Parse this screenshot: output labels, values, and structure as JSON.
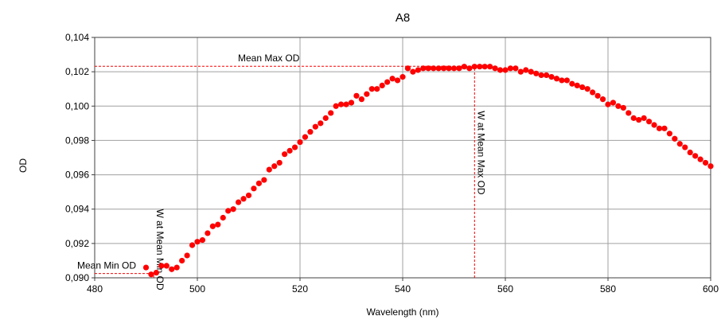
{
  "chart_data": {
    "type": "scatter",
    "title": "A8",
    "xlabel": "Wavelength (nm)",
    "ylabel": "OD",
    "xlim": [
      480,
      600
    ],
    "ylim": [
      0.09,
      0.104
    ],
    "x_ticks": [
      480,
      500,
      520,
      540,
      560,
      580,
      600
    ],
    "x_tick_labels": [
      "480",
      "500",
      "520",
      "540",
      "560",
      "580",
      "600"
    ],
    "y_ticks": [
      0.09,
      0.092,
      0.094,
      0.096,
      0.098,
      0.1,
      0.102,
      0.104
    ],
    "y_tick_labels": [
      "0,090",
      "0,092",
      "0,094",
      "0,096",
      "0,098",
      "0,100",
      "0,102",
      "0,104"
    ],
    "grid": true,
    "marker_color": "#ff0000",
    "annotation_color": "#ff0000",
    "series": [
      {
        "x": [
          490,
          491,
          492,
          493,
          494,
          495,
          496,
          497,
          498,
          499,
          500,
          501,
          502,
          503,
          504,
          505,
          506,
          507,
          508,
          509,
          510,
          511,
          512,
          513,
          514,
          515,
          516,
          517,
          518,
          519,
          520,
          521,
          522,
          523,
          524,
          525,
          526,
          527,
          528,
          529,
          530,
          531,
          532,
          533,
          534,
          535,
          536,
          537,
          538,
          539,
          540,
          541,
          542,
          543,
          544,
          545,
          546,
          547,
          548,
          549,
          550,
          551,
          552,
          553,
          554,
          555,
          556,
          557,
          558,
          559,
          560,
          561,
          562,
          563,
          564,
          565,
          566,
          567,
          568,
          569,
          570,
          571,
          572,
          573,
          574,
          575,
          576,
          577,
          578,
          579,
          580,
          581,
          582,
          583,
          584,
          585,
          586,
          587,
          588,
          589,
          590,
          591,
          592,
          593,
          594,
          595,
          596,
          597,
          598,
          599,
          600
        ],
        "y": [
          0.0906,
          0.0902,
          0.0903,
          0.0907,
          0.0907,
          0.0905,
          0.0906,
          0.091,
          0.0913,
          0.0919,
          0.0921,
          0.0922,
          0.0926,
          0.093,
          0.0931,
          0.0935,
          0.0939,
          0.094,
          0.0944,
          0.0946,
          0.0948,
          0.0952,
          0.0955,
          0.0957,
          0.0963,
          0.0965,
          0.0967,
          0.0972,
          0.0974,
          0.0976,
          0.0979,
          0.0982,
          0.0985,
          0.0988,
          0.099,
          0.0993,
          0.0996,
          0.1,
          0.1001,
          0.1001,
          0.1002,
          0.1006,
          0.1004,
          0.1007,
          0.101,
          0.101,
          0.1012,
          0.1014,
          0.1016,
          0.1015,
          0.1017,
          0.1022,
          0.102,
          0.1021,
          0.1022,
          0.1022,
          0.1022,
          0.1022,
          0.1022,
          0.1022,
          0.1022,
          0.1022,
          0.1023,
          0.1022,
          0.1023,
          0.1023,
          0.1023,
          0.1023,
          0.1022,
          0.1021,
          0.1021,
          0.1022,
          0.1022,
          0.102,
          0.1021,
          0.102,
          0.1019,
          0.1018,
          0.1018,
          0.1017,
          0.1016,
          0.1015,
          0.1015,
          0.1013,
          0.1012,
          0.1011,
          0.101,
          0.1008,
          0.1006,
          0.1004,
          0.1001,
          0.1002,
          0.1,
          0.0999,
          0.0996,
          0.0993,
          0.0992,
          0.0993,
          0.0991,
          0.0989,
          0.0987,
          0.0987,
          0.0984,
          0.0981,
          0.0978,
          0.0976,
          0.0973,
          0.0971,
          0.0969,
          0.0967,
          0.0965
        ]
      }
    ],
    "annotations": [
      {
        "label": "Mean Max OD",
        "kind": "hline",
        "y": 0.10232,
        "x_from": 480,
        "x_to": 554
      },
      {
        "label": "Mean Min OD",
        "kind": "hline",
        "y": 0.09025,
        "x_from": 480,
        "x_to": 491
      },
      {
        "label": "W at Mean Max OD",
        "kind": "vline",
        "x": 554,
        "y_from": 0.09,
        "y_to": 0.10232
      },
      {
        "label": "W at Mean Min OD",
        "kind": "vline",
        "x": 491.5,
        "y_from": 0.09,
        "y_to": 0.0903
      }
    ]
  }
}
